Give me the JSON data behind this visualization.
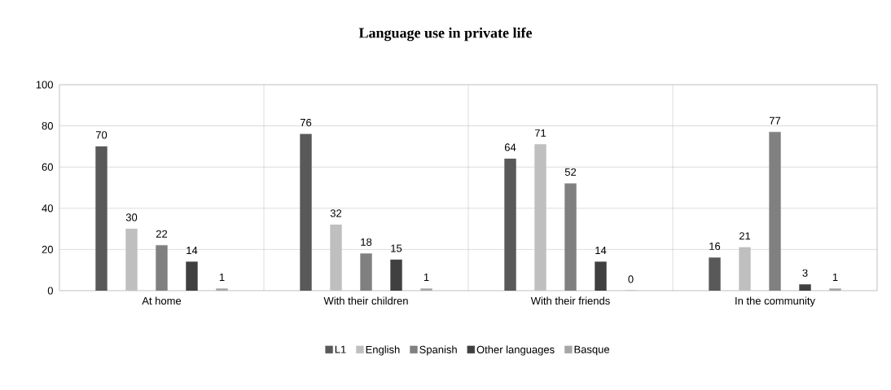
{
  "chart_data": {
    "type": "bar",
    "title": "Language use in private  life",
    "categories": [
      "At home",
      "With their children",
      "With their friends",
      "In the community"
    ],
    "series": [
      {
        "name": "L1",
        "color": "#595959",
        "values": [
          70,
          76,
          64,
          16
        ]
      },
      {
        "name": "English",
        "color": "#bfbfbf",
        "values": [
          30,
          32,
          71,
          21
        ]
      },
      {
        "name": "Spanish",
        "color": "#808080",
        "values": [
          22,
          18,
          52,
          77
        ]
      },
      {
        "name": "Other languages",
        "color": "#404040",
        "values": [
          14,
          15,
          14,
          3
        ]
      },
      {
        "name": "Basque",
        "color": "#a6a6a6",
        "values": [
          1,
          1,
          0,
          1
        ]
      }
    ],
    "ylim": [
      0,
      100
    ],
    "yticks": [
      0,
      20,
      40,
      60,
      80,
      100
    ],
    "grid": true,
    "legend": "bottom",
    "data_labels": true
  }
}
